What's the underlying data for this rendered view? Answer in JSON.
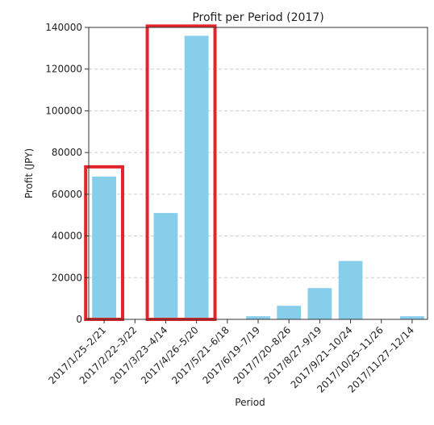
{
  "chart_data": {
    "type": "bar",
    "title": "Profit per Period (2017)",
    "xlabel": "Period",
    "ylabel": "Profit (JPY)",
    "categories": [
      "2017/1/25–2/21",
      "2017/2/22–3/22",
      "2017/3/23–4/14",
      "2017/4/26–5/20",
      "2017/5/21–6/18",
      "2017/6/19–7/19",
      "2017/7/20–8/26",
      "2017/8/27–9/19",
      "2017/9/21–10/24",
      "2017/10/25–11/26",
      "2017/11/27–12/14"
    ],
    "values": [
      68500,
      0,
      51000,
      136000,
      0,
      1500,
      6500,
      15000,
      28000,
      0,
      1500
    ],
    "ylim": [
      0,
      140000
    ],
    "yticks": [
      0,
      20000,
      40000,
      60000,
      80000,
      100000,
      120000,
      140000
    ],
    "grid": "horizontal dashed",
    "colors": {
      "bar": "#87CEEB",
      "highlight": "#E3242B",
      "grid": "#cccccc"
    },
    "highlights": [
      {
        "categories": [
          "2017/1/25–2/21"
        ]
      },
      {
        "categories": [
          "2017/3/23–4/14",
          "2017/4/26–5/20"
        ]
      }
    ]
  }
}
